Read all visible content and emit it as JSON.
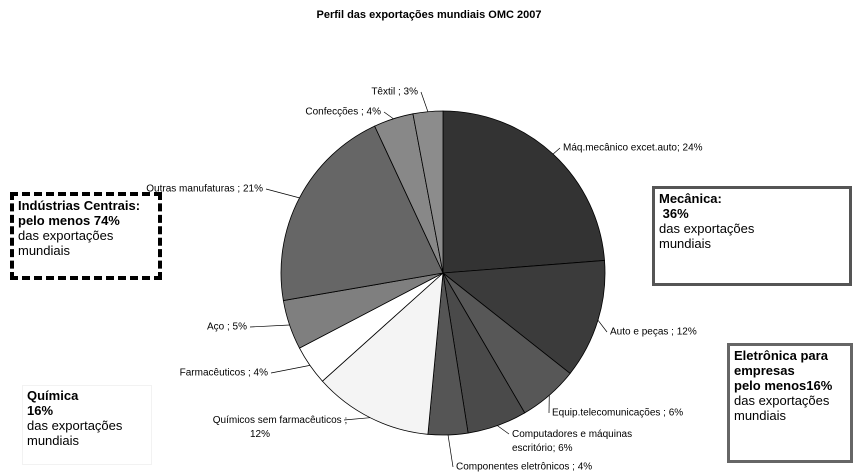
{
  "chart_data": {
    "type": "pie",
    "title": "Perfil das exportações mundiais OMC 2007",
    "values": [
      24,
      12,
      6,
      6,
      4,
      12,
      4,
      5,
      21,
      4,
      3
    ],
    "value_labels": [
      "Máq.mecânico excet.auto; 24%",
      "Auto e peças ; 12%",
      "Equip.telecomunicações ; 6%",
      "Computadores e máquinas\nescritório; 6%",
      "Componentes eletrônicos ; 4%",
      "Químicos sem farmacêuticos ;\n12%",
      "Farmacêuticos ; 4%",
      "Aço ; 5%",
      "Outras manufaturas ; 21%",
      "Confecções ; 4%",
      "Têxtil ; 3%"
    ],
    "colors": [
      "#333333",
      "#3b3b3b",
      "#575757",
      "#4a4a4a",
      "#555555",
      "#f4f4f4",
      "#ffffff",
      "#7f7f7f",
      "#666666",
      "#888888",
      "#8c8c8c"
    ],
    "annotations": [
      {
        "bold": [
          "Indústrias Centrais:",
          "pelo menos 74%"
        ],
        "text": [
          "das exportações",
          "mundiais"
        ]
      },
      {
        "bold": [
          "Mecânica:",
          " 36%"
        ],
        "text": [
          "das exportações",
          "mundiais"
        ]
      },
      {
        "bold": [
          "Eletrônica para",
          "empresas",
          "pelo menos16%"
        ],
        "text": [
          "das exportações",
          "mundiais"
        ]
      },
      {
        "bold": [
          "Química",
          "16%"
        ],
        "text": [
          "das exportações",
          "mundiais"
        ]
      }
    ]
  }
}
